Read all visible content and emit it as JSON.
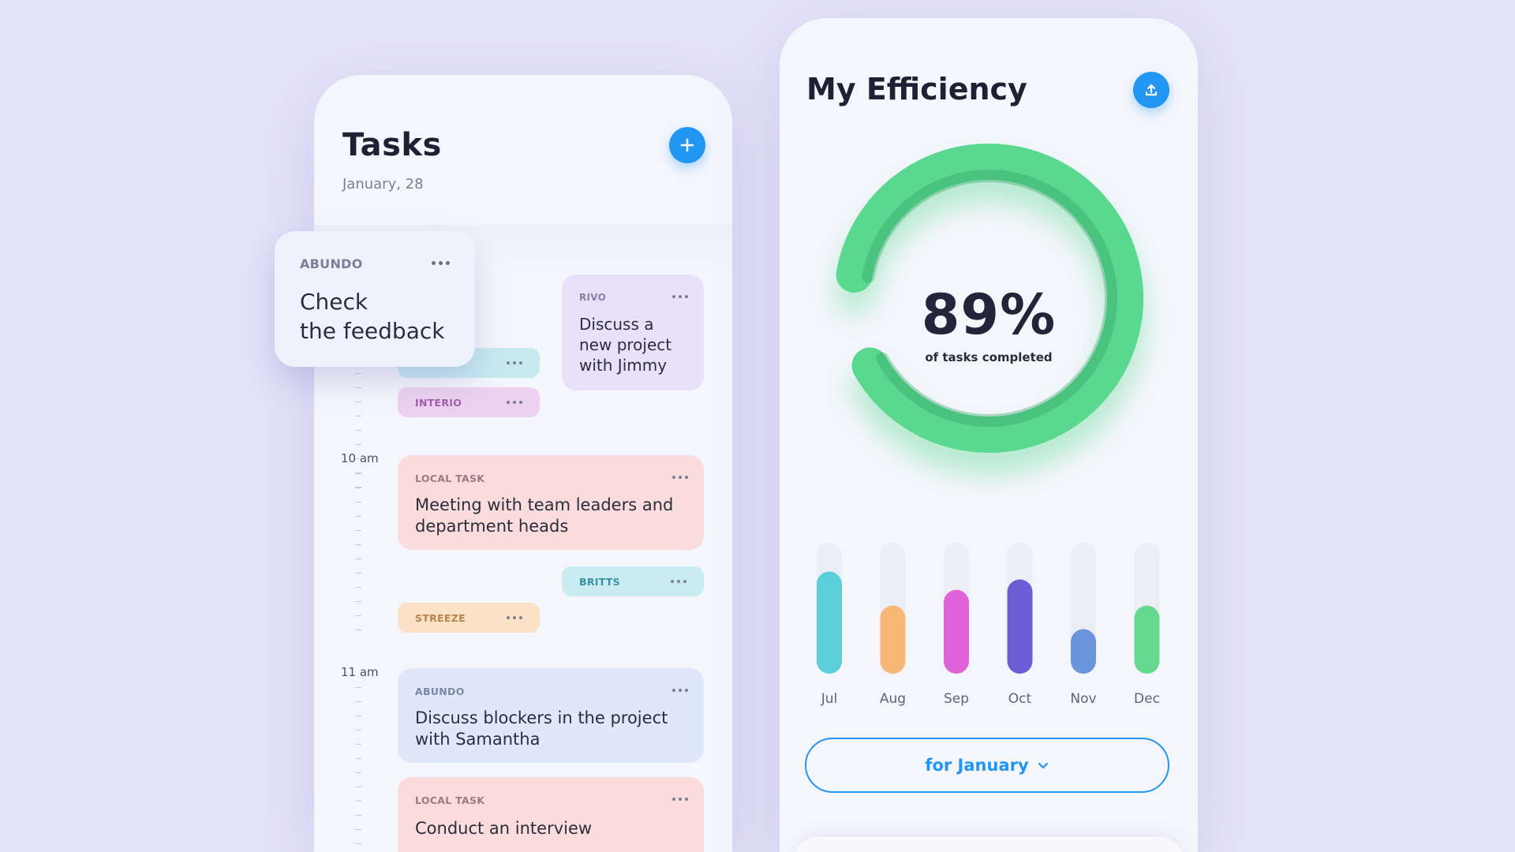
{
  "tasks": {
    "title": "Tasks",
    "date": "January, 28",
    "add_icon": "plus-icon",
    "accent": "#2196f3",
    "time_labels": [
      "10 am",
      "11 am"
    ],
    "floating_card": {
      "tag": "ABUNDO",
      "title_line1": "Check",
      "title_line2": "the feedback"
    },
    "rivo_card": {
      "tag": "RIVO",
      "title_line1": "Discuss a",
      "title_line2": "new project",
      "title_line3": "with Jimmy",
      "color": "#e9e1fa"
    },
    "pills": {
      "interio": {
        "tag": "INTERIO",
        "color": "#ecd2ef",
        "text_color": "#a060a8"
      },
      "britts": {
        "tag": "BRITTS",
        "color": "#c9ecf3",
        "text_color": "#3b8fa3"
      },
      "streeze": {
        "tag": "STREEZE",
        "color": "#fbe1c6",
        "text_color": "#b7834f"
      },
      "hidden_teal": {
        "color": "#c7eaf0"
      }
    },
    "cards": [
      {
        "tag": "LOCAL TASK",
        "title_line1": "Meeting with team leaders and",
        "title_line2": "department heads",
        "color": "#fbdcdc"
      },
      {
        "tag": "ABUNDO",
        "title_line1": "Discuss blockers in the project",
        "title_line2": "with Samantha",
        "color": "#dfe8fb"
      },
      {
        "tag": "LOCAL TASK",
        "title_line1": "Conduct an interview",
        "color": "#fbdcdc"
      }
    ]
  },
  "efficiency": {
    "title": "My Efficiency",
    "share_icon": "upload-icon",
    "percent_label": "89%",
    "subtitle": "of tasks completed",
    "progress": 0.89,
    "ring_color": "#5ad88f",
    "filter_label": "for January",
    "filter_icon": "chevron-down-icon"
  },
  "chart_data": {
    "type": "bar",
    "categories": [
      "Jul",
      "Aug",
      "Sep",
      "Oct",
      "Nov",
      "Dec"
    ],
    "values": [
      0.78,
      0.52,
      0.64,
      0.72,
      0.34,
      0.52
    ],
    "colors": [
      "#5bcfd9",
      "#f6b874",
      "#df62d8",
      "#6a5dd6",
      "#6a94dc",
      "#62d98f"
    ],
    "title": "",
    "xlabel": "",
    "ylabel": "",
    "ylim": [
      0,
      1
    ]
  }
}
